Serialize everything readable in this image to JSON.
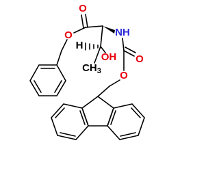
{
  "atoms": [
    {
      "label": "O"
    },
    {
      "label": "O"
    },
    {
      "label": "NH"
    },
    {
      "label": "H"
    },
    {
      "label": "OH"
    },
    {
      "label": "CH",
      "subscript": "3"
    },
    {
      "label": "O"
    },
    {
      "label": "O"
    }
  ]
}
